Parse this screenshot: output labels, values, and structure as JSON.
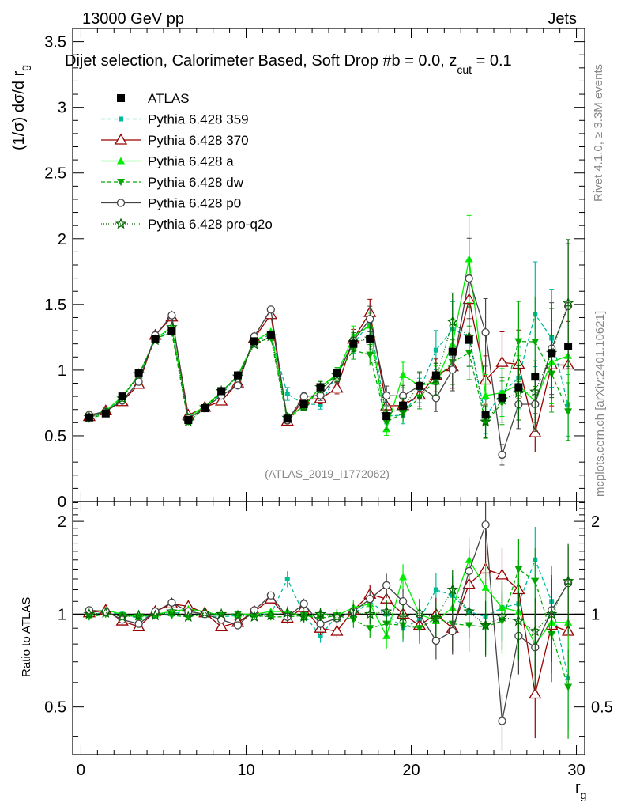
{
  "header": {
    "energy_label": "13000 GeV pp",
    "category_label": "Jets"
  },
  "side_labels": {
    "rivet": "Rivet 4.1.0, ≥ 3.3M events",
    "mcplots": "mcplots.cern.ch [arXiv:2401.10621]"
  },
  "chart_data": {
    "type": "scatter",
    "title": "Dijet selection, Calorimeter Based, Soft Drop #b = 0.0, z",
    "title_sub": "cut",
    "title_tail": " = 0.1",
    "ylabel": "(1/σ) dσ/d r",
    "ylabel_sub": "g",
    "xlabel": "r",
    "xlabel_sub": "g",
    "ratio_ylabel": "Ratio to ATLAS",
    "analysis_tag": "(ATLAS_2019_I1772062)",
    "xlim": [
      -0.5,
      30.5
    ],
    "ylim": [
      0,
      3.6
    ],
    "ratio_ylim": [
      0.35,
      2.32
    ],
    "x_ticks": [
      0,
      10,
      20,
      30
    ],
    "y_ticks": [
      0,
      0.5,
      1,
      1.5,
      2,
      2.5,
      3,
      3.5
    ],
    "y_tick_labels": [
      "0",
      "0.5",
      "1",
      "1.5",
      "2",
      "2.5",
      "3",
      "3.5"
    ],
    "ratio_ticks": [
      0.5,
      1,
      2
    ],
    "ratio_tick_labels": [
      "0.5",
      "1",
      "2"
    ],
    "x": [
      0.5,
      1.5,
      2.5,
      3.5,
      4.5,
      5.5,
      6.5,
      7.5,
      8.5,
      9.5,
      10.5,
      11.5,
      12.5,
      13.5,
      14.5,
      15.5,
      16.5,
      17.5,
      18.5,
      19.5,
      20.5,
      21.5,
      22.5,
      23.5,
      24.5,
      25.5,
      26.5,
      27.5,
      28.5,
      29.5
    ],
    "reference": {
      "name": "ATLAS",
      "color": "#000000",
      "values": [
        0.64,
        0.67,
        0.8,
        0.98,
        1.24,
        1.3,
        0.62,
        0.71,
        0.84,
        0.96,
        1.22,
        1.27,
        0.63,
        0.74,
        0.87,
        0.98,
        1.2,
        1.24,
        0.65,
        0.73,
        0.88,
        0.96,
        1.14,
        1.23,
        0.66,
        0.79,
        0.87,
        0.95,
        1.13,
        1.18
      ]
    },
    "series": [
      {
        "name": "Pythia 6.428 359",
        "color": "#00bb99",
        "dash": "5,3",
        "marker": "square-small",
        "ratio": [
          0.99,
          1.02,
          1.0,
          0.97,
          0.99,
          1.0,
          1.03,
          0.99,
          0.98,
          0.99,
          1.0,
          1.0,
          1.3,
          1.0,
          0.85,
          0.99,
          1.0,
          1.1,
          1.0,
          0.9,
          0.96,
          1.2,
          1.15,
          1.02,
          0.98,
          1.05,
          1.08,
          1.5,
          1.1,
          0.62
        ],
        "err": [
          0.01,
          0.01,
          0.01,
          0.01,
          0.01,
          0.01,
          0.01,
          0.01,
          0.01,
          0.01,
          0.01,
          0.01,
          0.06,
          0.04,
          0.05,
          0.05,
          0.06,
          0.07,
          0.09,
          0.1,
          0.11,
          0.13,
          0.16,
          0.18,
          0.2,
          0.22,
          0.25,
          0.28,
          0.3,
          0.32
        ]
      },
      {
        "name": "Pythia 6.428 370",
        "color": "#990000",
        "dash": "",
        "marker": "triangle-open",
        "ratio": [
          1.01,
          1.03,
          0.95,
          0.91,
          1.02,
          1.08,
          1.06,
          1.01,
          0.91,
          0.94,
          1.02,
          1.12,
          0.97,
          1.05,
          0.9,
          0.88,
          1.03,
          1.16,
          1.12,
          1.0,
          0.92,
          1.0,
          0.9,
          1.25,
          1.4,
          1.34,
          1.2,
          0.55,
          0.92,
          0.88
        ],
        "err": [
          0.01,
          0.01,
          0.01,
          0.01,
          0.01,
          0.01,
          0.01,
          0.01,
          0.01,
          0.01,
          0.01,
          0.01,
          0.04,
          0.04,
          0.05,
          0.05,
          0.06,
          0.07,
          0.09,
          0.1,
          0.11,
          0.13,
          0.16,
          0.18,
          0.2,
          0.22,
          0.25,
          0.28,
          0.3,
          0.32
        ]
      },
      {
        "name": "Pythia 6.428 a",
        "color": "#00ee00",
        "dash": "",
        "marker": "triangle-filled",
        "ratio": [
          1.02,
          1.03,
          1.0,
          0.98,
          1.0,
          1.02,
          1.04,
          1.02,
          0.99,
          1.0,
          1.0,
          1.02,
          1.02,
          0.98,
          1.0,
          0.99,
          1.05,
          1.08,
          0.85,
          1.32,
          1.0,
          0.95,
          1.05,
          1.5,
          1.22,
          1.05,
          1.02,
          0.8,
          0.94,
          0.94
        ],
        "err": [
          0.01,
          0.01,
          0.01,
          0.01,
          0.01,
          0.01,
          0.01,
          0.01,
          0.01,
          0.01,
          0.01,
          0.01,
          0.04,
          0.04,
          0.05,
          0.05,
          0.06,
          0.07,
          0.09,
          0.1,
          0.11,
          0.13,
          0.16,
          0.18,
          0.2,
          0.22,
          0.25,
          0.28,
          0.3,
          0.32
        ]
      },
      {
        "name": "Pythia 6.428 dw",
        "color": "#00aa00",
        "dash": "5,3",
        "marker": "triangle-down",
        "ratio": [
          0.98,
          1.0,
          0.99,
          0.98,
          1.0,
          0.99,
          0.98,
          1.0,
          0.99,
          1.0,
          0.99,
          0.98,
          0.98,
          0.99,
          0.97,
          0.99,
          0.96,
          0.9,
          0.93,
          0.92,
          0.9,
          0.97,
          0.93,
          0.92,
          0.91,
          0.95,
          1.4,
          1.28,
          0.86,
          0.58
        ],
        "err": [
          0.01,
          0.01,
          0.01,
          0.01,
          0.01,
          0.01,
          0.01,
          0.01,
          0.01,
          0.01,
          0.01,
          0.01,
          0.04,
          0.04,
          0.05,
          0.05,
          0.06,
          0.07,
          0.09,
          0.1,
          0.11,
          0.13,
          0.16,
          0.18,
          0.2,
          0.22,
          0.25,
          0.28,
          0.3,
          0.32
        ]
      },
      {
        "name": "Pythia 6.428 p0",
        "color": "#444444",
        "dash": "",
        "marker": "circle-open",
        "ratio": [
          1.03,
          1.02,
          0.96,
          0.93,
          1.02,
          1.09,
          1.02,
          1.0,
          0.96,
          0.92,
          1.03,
          1.15,
          0.98,
          1.08,
          0.93,
          0.97,
          1.02,
          1.12,
          1.24,
          1.1,
          1.0,
          0.82,
          0.88,
          1.38,
          1.95,
          0.45,
          0.85,
          0.78,
          1.03,
          1.26
        ],
        "err": [
          0.01,
          0.01,
          0.01,
          0.01,
          0.01,
          0.01,
          0.01,
          0.01,
          0.01,
          0.01,
          0.01,
          0.01,
          0.04,
          0.04,
          0.05,
          0.05,
          0.06,
          0.07,
          0.09,
          0.1,
          0.11,
          0.13,
          0.16,
          0.18,
          0.2,
          0.22,
          0.25,
          0.28,
          0.3,
          0.32
        ]
      },
      {
        "name": "Pythia 6.428 pro-q2o",
        "color": "#006600",
        "dash": "1,2",
        "marker": "star",
        "ratio": [
          1.0,
          1.01,
          0.98,
          0.99,
          0.99,
          1.02,
          0.98,
          1.01,
          1.0,
          0.99,
          0.98,
          0.99,
          1.01,
          0.98,
          1.0,
          0.98,
          1.01,
          1.0,
          1.02,
          0.98,
          1.01,
          0.97,
          1.2,
          1.02,
          0.92,
          0.98,
          0.95,
          0.88,
          1.0,
          1.28
        ],
        "err": [
          0.01,
          0.01,
          0.01,
          0.01,
          0.01,
          0.01,
          0.01,
          0.01,
          0.01,
          0.01,
          0.01,
          0.01,
          0.04,
          0.04,
          0.05,
          0.05,
          0.06,
          0.07,
          0.09,
          0.1,
          0.11,
          0.13,
          0.16,
          0.18,
          0.2,
          0.22,
          0.25,
          0.28,
          0.3,
          0.32
        ]
      }
    ]
  }
}
